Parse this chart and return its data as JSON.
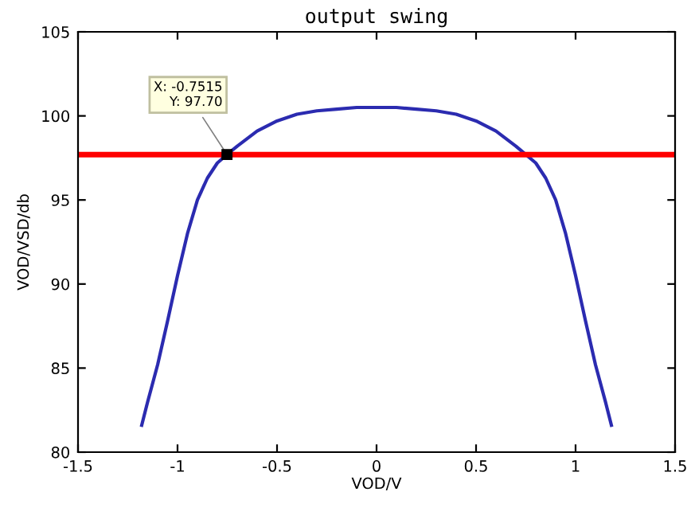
{
  "chart_data": {
    "type": "line",
    "title": "output swing",
    "xlabel": "VOD/V",
    "ylabel": "VOD/VSD/db",
    "series": [
      {
        "color": "#2b2bb0",
        "x": [
          -1.18,
          -1.15,
          -1.1,
          -1.05,
          -1.0,
          -0.95,
          -0.9,
          -0.85,
          -0.8,
          -0.7515,
          -0.7,
          -0.6,
          -0.5,
          -0.4,
          -0.3,
          -0.2,
          -0.1,
          0,
          0.1,
          0.2,
          0.3,
          0.4,
          0.5,
          0.6,
          0.7,
          0.75,
          0.8,
          0.85,
          0.9,
          0.95,
          1.0,
          1.05,
          1.1,
          1.15,
          1.18
        ],
        "values": [
          81.6,
          83,
          85.2,
          87.8,
          90.5,
          93,
          95,
          96.3,
          97.2,
          97.7,
          98.2,
          99.1,
          99.7,
          100.1,
          100.3,
          100.4,
          100.5,
          100.5,
          100.5,
          100.4,
          100.3,
          100.1,
          99.7,
          99.1,
          98.2,
          97.7,
          97.2,
          96.3,
          95,
          93,
          90.5,
          87.8,
          85.2,
          83,
          81.6
        ]
      }
    ],
    "ref_lines": [
      {
        "axis": "y",
        "value": 97.7,
        "color": "#ff0000"
      }
    ],
    "annotations": [
      {
        "text": "X: -0.7515\nY: 97.70",
        "x": -0.7515,
        "y": 97.7
      }
    ],
    "xlim": [
      -1.5,
      1.5
    ],
    "ylim": [
      80,
      105
    ],
    "xticks": [
      -1.5,
      -1,
      -0.5,
      0,
      0.5,
      1,
      1.5
    ],
    "yticks": [
      80,
      85,
      90,
      95,
      100,
      105
    ],
    "grid": false,
    "legend": false,
    "marker": "none",
    "line_style": "solid"
  }
}
